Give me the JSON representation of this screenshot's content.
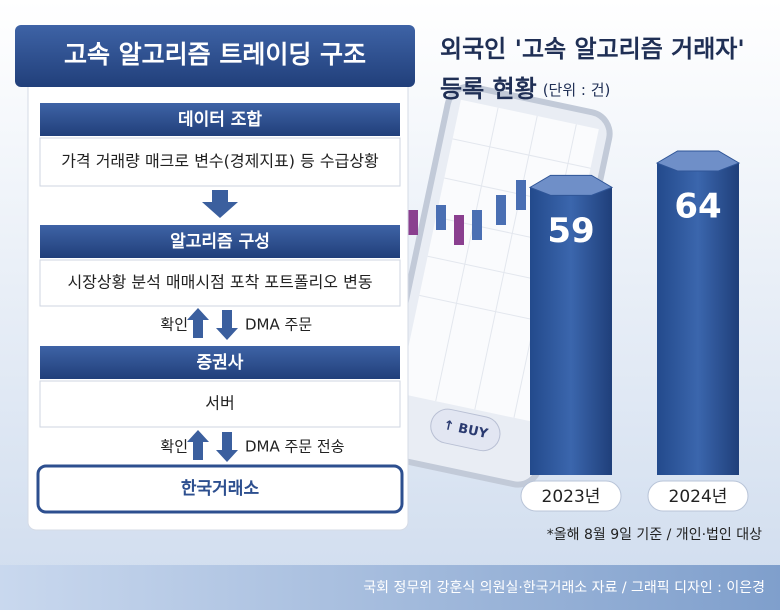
{
  "diagram": {
    "title": "고속 알고리즘 트레이딩 구조",
    "steps": [
      {
        "title": "데이터 조합",
        "text": "가격 거래량 매크로 변수(경제지표) 등 수급상황"
      },
      {
        "title": "알고리즘 구성",
        "text": "시장상황 분석 매매시점 포착 포트폴리오 변동"
      },
      {
        "title": "증권사",
        "text": "서버"
      }
    ],
    "links": [
      {
        "up": "확인",
        "down": "DMA 주문"
      },
      {
        "up": "확인",
        "down": "DMA 주문 전송"
      }
    ],
    "exchange": "한국거래소"
  },
  "phone": {
    "button": "↑ BUY"
  },
  "chart_data": {
    "type": "bar",
    "title": "외국인 '고속 알고리즘 거래자'",
    "subtitle": "등록 현황",
    "unit": "(단위 : 건)",
    "categories": [
      "2023년",
      "2024년"
    ],
    "values": [
      59,
      64
    ],
    "color": "#2f5597",
    "note": "*올해 8월 9일 기준 / 개인·법인 대상"
  },
  "footer": {
    "source": "국회 정무위 강훈식 의원실·한국거래소 자료 / 그래픽 디자인 : 이은경"
  }
}
